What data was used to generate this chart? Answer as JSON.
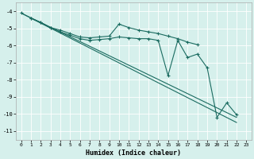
{
  "xlabel": "Humidex (Indice chaleur)",
  "bg_color": "#d6f0ec",
  "line_color": "#1a6b60",
  "grid_color": "#ffffff",
  "xlim": [
    -0.5,
    23.5
  ],
  "ylim": [
    -11.5,
    -3.5
  ],
  "xticks": [
    0,
    1,
    2,
    3,
    4,
    5,
    6,
    7,
    8,
    9,
    10,
    11,
    12,
    13,
    14,
    15,
    16,
    17,
    18,
    19,
    20,
    21,
    22,
    23
  ],
  "yticks": [
    -11,
    -10,
    -9,
    -8,
    -7,
    -6,
    -5,
    -4
  ],
  "line1_x": [
    0,
    1,
    2,
    3,
    4,
    5,
    6,
    7,
    8,
    9,
    10,
    11,
    12,
    13,
    14,
    15,
    16,
    17,
    18
  ],
  "line1_y": [
    -4.1,
    -4.4,
    -4.65,
    -4.95,
    -5.1,
    -5.3,
    -5.5,
    -5.55,
    -5.5,
    -5.45,
    -4.75,
    -4.95,
    -5.1,
    -5.2,
    -5.3,
    -5.45,
    -5.6,
    -5.8,
    -5.95
  ],
  "line2_x": [
    1,
    2,
    3,
    4,
    5,
    6,
    7,
    8,
    9,
    10,
    11,
    12,
    13,
    14,
    15,
    16,
    17,
    18,
    19,
    20,
    21,
    22
  ],
  "line2_y": [
    -4.4,
    -4.65,
    -4.95,
    -5.2,
    -5.4,
    -5.6,
    -5.7,
    -5.65,
    -5.6,
    -5.5,
    -5.55,
    -5.6,
    -5.6,
    -5.7,
    -7.75,
    -5.7,
    -6.7,
    -6.5,
    -7.3,
    -10.2,
    -9.35,
    -10.05
  ],
  "line3_x": [
    0,
    22
  ],
  "line3_y": [
    -4.1,
    -10.2
  ],
  "line4_x": [
    1,
    22
  ],
  "line4_y": [
    -4.4,
    -10.5
  ]
}
